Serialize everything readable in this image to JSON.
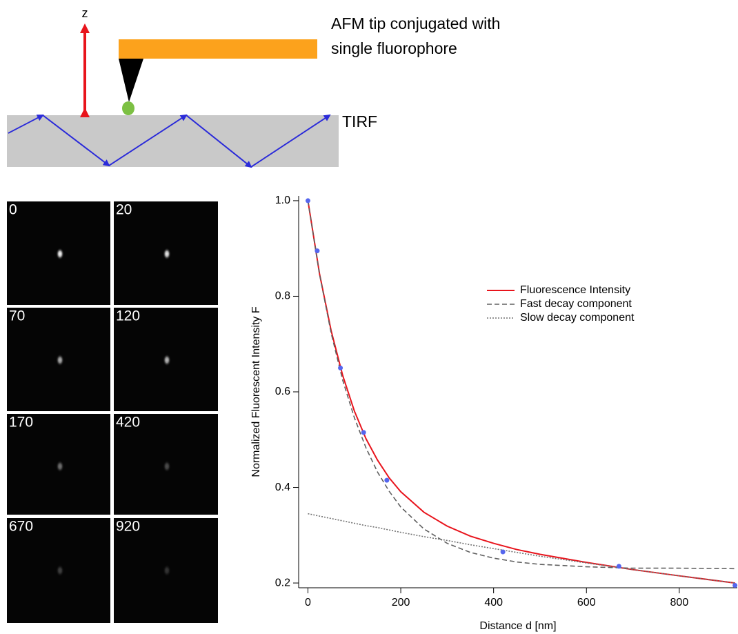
{
  "diagram": {
    "z_label": "z",
    "tip_label": [
      "AFM tip conjugated with",
      "single fluorophore"
    ],
    "tirf_label": "TIRF"
  },
  "panels": {
    "labels": [
      "0",
      "20",
      "70",
      "120",
      "170",
      "420",
      "670",
      "920"
    ]
  },
  "chart_data": {
    "type": "line",
    "x_label": "Distance d [nm]",
    "y_label": "Normalized Fluorescent Intensity F",
    "x": [
      0,
      25,
      50,
      75,
      100,
      125,
      150,
      175,
      200,
      250,
      300,
      350,
      400,
      450,
      500,
      600,
      700,
      800,
      920
    ],
    "series": [
      {
        "name": "Fluorescence Intensity",
        "color": "#e8141c",
        "dash": "solid",
        "values": [
          1.0,
          0.847,
          0.728,
          0.634,
          0.56,
          0.502,
          0.457,
          0.42,
          0.391,
          0.348,
          0.319,
          0.298,
          0.283,
          0.27,
          0.26,
          0.243,
          0.228,
          0.215,
          0.2
        ]
      },
      {
        "name": "Fast decay component",
        "color": "#606060",
        "dash": "dashed",
        "values": [
          1.0,
          0.846,
          0.723,
          0.624,
          0.546,
          0.483,
          0.432,
          0.392,
          0.359,
          0.313,
          0.283,
          0.264,
          0.252,
          0.244,
          0.239,
          0.234,
          0.231,
          0.231,
          0.23
        ]
      },
      {
        "name": "Slow decay component",
        "color": "#707070",
        "dash": "dotted",
        "values": [
          0.345,
          0.34,
          0.335,
          0.33,
          0.325,
          0.32,
          0.316,
          0.311,
          0.306,
          0.297,
          0.289,
          0.28,
          0.272,
          0.264,
          0.256,
          0.242,
          0.228,
          0.215,
          0.2
        ]
      }
    ],
    "points": {
      "color": "#5566ee",
      "x": [
        0,
        20,
        70,
        120,
        170,
        420,
        670,
        920
      ],
      "values": [
        1.0,
        0.895,
        0.65,
        0.515,
        0.415,
        0.265,
        0.235,
        0.195
      ]
    },
    "xlim": [
      -20,
      925
    ],
    "xticks": [
      0,
      200,
      400,
      600,
      800
    ],
    "ylim": [
      0.19,
      1.01
    ],
    "yticks": [
      0.2,
      0.4,
      0.6,
      0.8,
      {
        "value": 1,
        "label": "1.0"
      }
    ]
  }
}
